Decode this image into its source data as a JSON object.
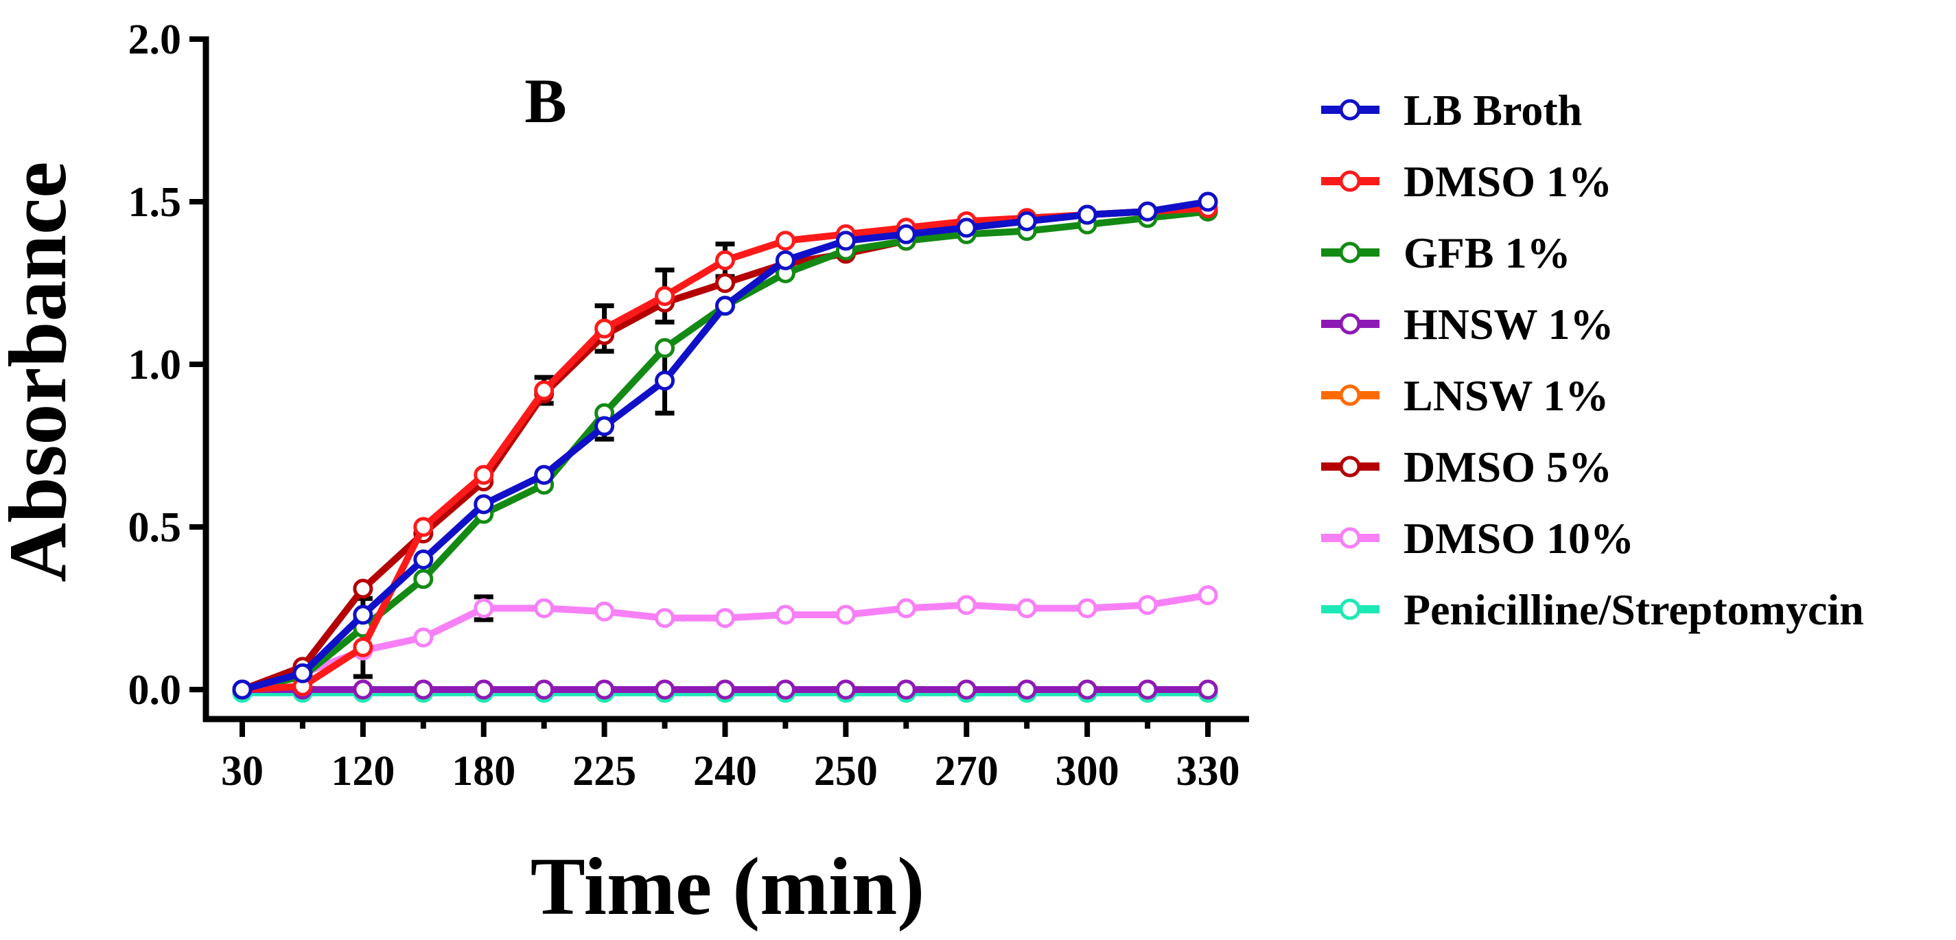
{
  "chart_data": {
    "type": "line",
    "panel_label": "B",
    "title": "",
    "xlabel": "Time (min)",
    "ylabel": "Absorbance",
    "ylim": [
      0,
      2.0
    ],
    "y_ticks": [
      "0.0",
      "0.5",
      "1.0",
      "1.5",
      "2.0"
    ],
    "y_tick_values": [
      0,
      0.5,
      1.0,
      1.5,
      2.0
    ],
    "categories": [
      "30",
      "",
      "120",
      "",
      "180",
      "",
      "225",
      "",
      "240",
      "",
      "250",
      "",
      "270",
      "",
      "300",
      "",
      "330"
    ],
    "x_tick_labels": [
      "30",
      "120",
      "180",
      "225",
      "240",
      "250",
      "270",
      "300",
      "330"
    ],
    "legend_position": "right",
    "series": [
      {
        "name": "Penicilline/Streptomycin",
        "color": "#1de9b6",
        "values": [
          -0.01,
          -0.01,
          -0.01,
          -0.01,
          -0.01,
          -0.01,
          -0.01,
          -0.01,
          -0.01,
          -0.01,
          -0.01,
          -0.01,
          -0.01,
          -0.01,
          -0.01,
          -0.01,
          -0.01
        ]
      },
      {
        "name": "LNSW 1%",
        "color": "#ff6a00",
        "values": [
          0.0,
          0.0,
          0.0,
          0.0,
          0.0,
          0.0,
          0.0,
          0.0,
          0.0,
          0.0,
          0.0,
          0.0,
          0.0,
          0.0,
          0.0,
          0.0,
          0.0
        ]
      },
      {
        "name": "HNSW 1%",
        "color": "#8e1ab5",
        "values": [
          0.0,
          0.0,
          0.0,
          0.0,
          0.0,
          0.0,
          0.0,
          0.0,
          0.0,
          0.0,
          0.0,
          0.0,
          0.0,
          0.0,
          0.0,
          0.0,
          0.0
        ]
      },
      {
        "name": "DMSO 10%",
        "color": "#f780f7",
        "values": [
          0.0,
          0.05,
          0.12,
          0.16,
          0.25,
          0.25,
          0.24,
          0.22,
          0.22,
          0.23,
          0.23,
          0.25,
          0.26,
          0.25,
          0.25,
          0.26,
          0.29
        ],
        "errors": [
          0,
          0,
          0,
          0,
          0.035,
          0,
          0,
          0,
          0,
          0,
          0,
          0,
          0,
          0,
          0,
          0,
          0
        ]
      },
      {
        "name": "DMSO 5%",
        "color": "#b40000",
        "values": [
          0.0,
          0.07,
          0.31,
          0.48,
          0.64,
          0.91,
          1.09,
          1.19,
          1.25,
          1.31,
          1.34,
          1.38,
          1.42,
          1.44,
          1.46,
          1.47,
          1.47
        ]
      },
      {
        "name": "GFB 1%",
        "color": "#138a13",
        "values": [
          0.0,
          0.04,
          0.19,
          0.34,
          0.54,
          0.63,
          0.85,
          1.05,
          1.18,
          1.28,
          1.35,
          1.38,
          1.4,
          1.41,
          1.43,
          1.45,
          1.47
        ]
      },
      {
        "name": "DMSO 1%",
        "color": "#ff1a1a",
        "values": [
          0.0,
          0.01,
          0.13,
          0.5,
          0.66,
          0.92,
          1.11,
          1.21,
          1.32,
          1.38,
          1.4,
          1.42,
          1.44,
          1.45,
          1.46,
          1.47,
          1.48
        ],
        "errors": [
          0,
          0,
          0.09,
          0,
          0,
          0.04,
          0.07,
          0.08,
          0.05,
          0,
          0,
          0,
          0,
          0,
          0,
          0,
          0
        ]
      },
      {
        "name": "LB Broth",
        "color": "#1010c8",
        "values": [
          0.0,
          0.05,
          0.23,
          0.4,
          0.57,
          0.66,
          0.81,
          0.95,
          1.18,
          1.32,
          1.38,
          1.4,
          1.42,
          1.44,
          1.46,
          1.47,
          1.5
        ],
        "errors": [
          0,
          0,
          0.05,
          0,
          0,
          0,
          0.04,
          0.1,
          0,
          0,
          0,
          0,
          0,
          0,
          0,
          0,
          0
        ]
      }
    ],
    "legend": [
      "LB Broth",
      "DMSO 1%",
      "GFB 1%",
      "HNSW 1%",
      "LNSW 1%",
      "DMSO 5%",
      "DMSO 10%",
      "Penicilline/Streptomycin"
    ]
  }
}
